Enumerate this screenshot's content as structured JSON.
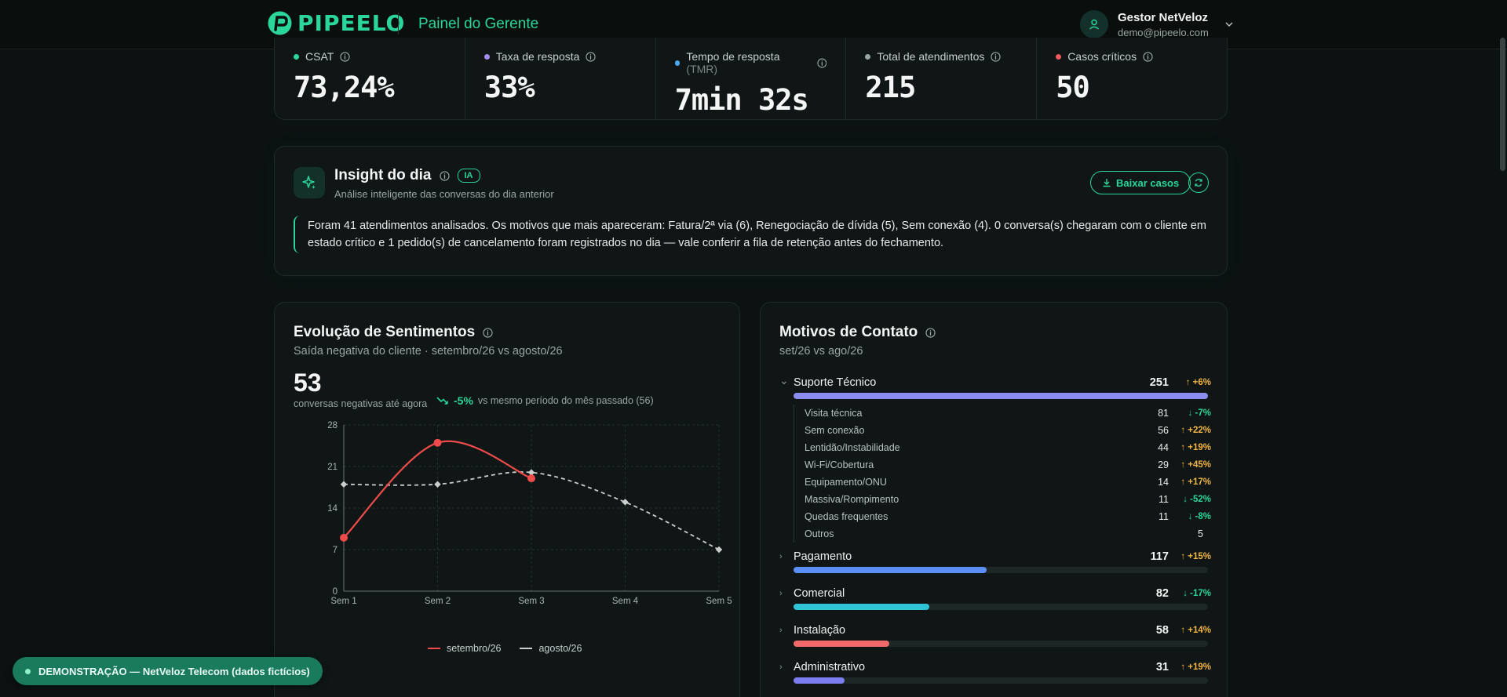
{
  "header": {
    "logo_text": "PIPEELO",
    "page_title": "Painel do Gerente",
    "user_name": "Gestor NetVeloz",
    "user_email": "demo@pipeelo.com"
  },
  "kpis": [
    {
      "label": "CSAT",
      "suffix": "",
      "value": "73,24%",
      "color": "#2bd69b"
    },
    {
      "label": "Taxa de resposta",
      "suffix": "",
      "value": "33%",
      "color": "#a58cf0"
    },
    {
      "label": "Tempo de resposta",
      "suffix": "(TMR)",
      "value": "7min 32s",
      "color": "#4aa8f0"
    },
    {
      "label": "Total de atendimentos",
      "suffix": "",
      "value": "215",
      "color": "#9aa6a3"
    },
    {
      "label": "Casos críticos",
      "suffix": "",
      "value": "50",
      "color": "#f05a5a"
    }
  ],
  "insight": {
    "title": "Insight do dia",
    "badge": "IA",
    "subtitle": "Análise inteligente das conversas do dia anterior",
    "download_label": "Baixar casos",
    "text": "Foram 41 atendimentos analisados. Os motivos que mais apareceram: Fatura/2ª via (6), Renegociação de dívida (5), Sem conexão (4). 0 conversa(s) chegaram com o cliente em estado crítico e 1 pedido(s) de cancelamento foram registrados no dia — vale conferir a fila de retenção antes do fechamento."
  },
  "sentiment": {
    "title": "Evolução de Sentimentos",
    "subtitle": "Saída negativa do cliente · setembro/26 vs agosto/26",
    "big_number": "53",
    "big_caption": "conversas negativas até agora",
    "delta_pct": "-5%",
    "delta_text": "vs mesmo período do mês passado (56)"
  },
  "chart_data": {
    "type": "line",
    "categories": [
      "Sem 1",
      "Sem 2",
      "Sem 3",
      "Sem 4",
      "Sem 5"
    ],
    "ylim": [
      0,
      28
    ],
    "yticks": [
      0,
      7,
      14,
      21,
      28
    ],
    "grid": true,
    "legend_position": "bottom",
    "series": [
      {
        "name": "setembro/26",
        "color": "#ef4b4b",
        "values": [
          9,
          25,
          19,
          null,
          null
        ]
      },
      {
        "name": "agosto/26",
        "color": "#c9cfcd",
        "values": [
          18,
          18,
          20,
          15,
          7
        ]
      }
    ]
  },
  "motivos": {
    "title": "Motivos de Contato",
    "subtitle": "set/26 vs ago/26",
    "categories": [
      {
        "name": "Suporte Técnico",
        "count": "251",
        "delta": "+6%",
        "dir": "up",
        "share": 1.0,
        "color": "#8b8cf0",
        "open": true,
        "subs": [
          {
            "name": "Visita técnica",
            "count": "81",
            "delta": "-7%",
            "dir": "down"
          },
          {
            "name": "Sem conexão",
            "count": "56",
            "delta": "+22%",
            "dir": "up"
          },
          {
            "name": "Lentidão/Instabilidade",
            "count": "44",
            "delta": "+19%",
            "dir": "up"
          },
          {
            "name": "Wi-Fi/Cobertura",
            "count": "29",
            "delta": "+45%",
            "dir": "up"
          },
          {
            "name": "Equipamento/ONU",
            "count": "14",
            "delta": "+17%",
            "dir": "up"
          },
          {
            "name": "Massiva/Rompimento",
            "count": "11",
            "delta": "-52%",
            "dir": "down"
          },
          {
            "name": "Quedas frequentes",
            "count": "11",
            "delta": "-8%",
            "dir": "down"
          },
          {
            "name": "Outros",
            "count": "5",
            "delta": "",
            "dir": ""
          }
        ]
      },
      {
        "name": "Pagamento",
        "count": "117",
        "delta": "+15%",
        "dir": "up",
        "share": 0.466,
        "color": "#5b8ff5",
        "open": false,
        "subs": []
      },
      {
        "name": "Comercial",
        "count": "82",
        "delta": "-17%",
        "dir": "down",
        "share": 0.327,
        "color": "#2ec4d6",
        "open": false,
        "subs": []
      },
      {
        "name": "Instalação",
        "count": "58",
        "delta": "+14%",
        "dir": "up",
        "share": 0.231,
        "color": "#f06a6a",
        "open": false,
        "subs": []
      },
      {
        "name": "Administrativo",
        "count": "31",
        "delta": "+19%",
        "dir": "up",
        "share": 0.124,
        "color": "#7c7ef0",
        "open": false,
        "subs": []
      }
    ]
  },
  "demo_banner": "DEMONSTRAÇÃO — NetVeloz Telecom (dados fictícios)"
}
